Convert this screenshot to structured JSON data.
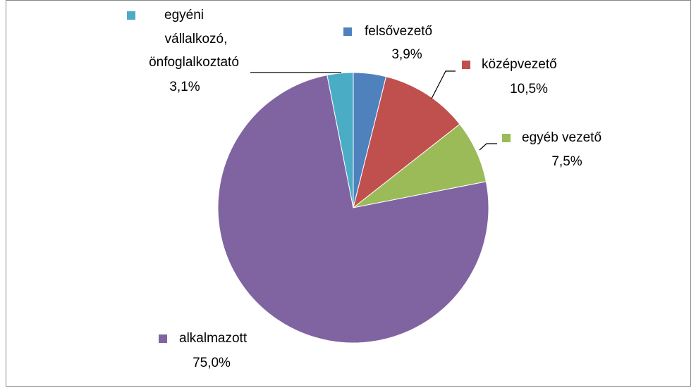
{
  "chart_data": {
    "type": "pie",
    "categories": [
      "felsővezető",
      "középvezető",
      "egyéb vezető",
      "alkalmazott",
      "egyéni vállalkozó, önfoglalkoztató"
    ],
    "values": [
      3.9,
      10.5,
      7.5,
      75.0,
      3.1
    ],
    "value_labels": [
      "3,9%",
      "10,5%",
      "7,5%",
      "75,0%",
      "3,1%"
    ],
    "colors": [
      "#4f81bd",
      "#c0504d",
      "#9bbb59",
      "#8064a2",
      "#4bacc6"
    ]
  }
}
